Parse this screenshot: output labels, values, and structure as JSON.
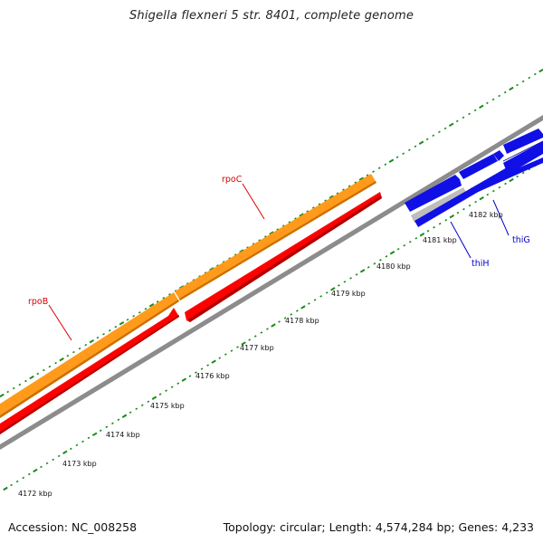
{
  "title": "Shigella flexneri 5 str. 8401, complete genome",
  "footer": {
    "accession": "Accession: NC_008258",
    "summary": "Topology: circular; Length: 4,574,284 bp; Genes: 4,233"
  },
  "colors": {
    "backbone": "#8c8c8c",
    "tick": "#1a8a1a",
    "rpoB": "#ff9a1a",
    "rpoC": "#ff0000",
    "thi": "#1010e6",
    "thi_alt": "#bdbdbd",
    "label_red": "#dd0000",
    "label_blue": "#0000cc"
  },
  "scale": {
    "labels": [
      "4172 kbp",
      "4173 kbp",
      "4174 kbp",
      "4175 kbp",
      "4176 kbp",
      "4177 kbp",
      "4178 kbp",
      "4179 kbp",
      "4180 kbp",
      "4181 kbp",
      "4182 kbp"
    ]
  },
  "genes": [
    {
      "name": "rpoB",
      "color": "label_red"
    },
    {
      "name": "rpoC",
      "color": "label_red"
    },
    {
      "name": "thiH",
      "color": "label_blue"
    },
    {
      "name": "thiG",
      "color": "label_blue"
    }
  ]
}
